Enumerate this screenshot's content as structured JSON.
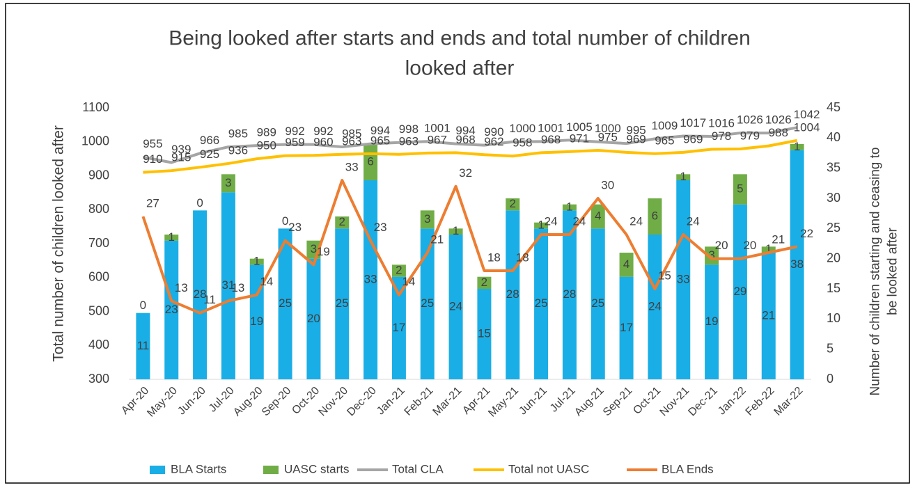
{
  "chart_data": {
    "type": "combo",
    "title": "Being looked after starts and ends and total number of children looked after",
    "y_label": "Total number of children looked after",
    "y2_label": "Number of children starting and ceasing to be looked after",
    "categories": [
      "Apr-20",
      "May-20",
      "Jun-20",
      "Jul-20",
      "Aug-20",
      "Sep-20",
      "Oct-20",
      "Nov-20",
      "Dec-20",
      "Jan-21",
      "Feb-21",
      "Mar-21",
      "Apr-21",
      "May-21",
      "Jun-21",
      "Jul-21",
      "Aug-21",
      "Sep-21",
      "Oct-21",
      "Nov-21",
      "Dec-21",
      "Jan-22",
      "Feb-22",
      "Mar-22"
    ],
    "ylim": [
      300,
      1100
    ],
    "yticks": [
      300,
      400,
      500,
      600,
      700,
      800,
      900,
      1000,
      1100
    ],
    "y2lim": [
      0,
      45
    ],
    "y2ticks": [
      0,
      5,
      10,
      15,
      20,
      25,
      30,
      35,
      40,
      45
    ],
    "series": [
      {
        "name": "BLA Starts",
        "type": "bar",
        "axis": "y2",
        "color": "#1aaee6",
        "values": [
          11,
          23,
          28,
          31,
          19,
          25,
          20,
          25,
          33,
          17,
          25,
          24,
          15,
          28,
          25,
          28,
          25,
          17,
          24,
          33,
          19,
          29,
          21,
          38
        ]
      },
      {
        "name": "UASC starts",
        "type": "bar",
        "axis": "y2",
        "color": "#70ad47",
        "values": [
          0,
          1,
          0,
          3,
          1,
          0,
          3,
          2,
          6,
          2,
          3,
          1,
          2,
          2,
          1,
          1,
          4,
          4,
          6,
          1,
          3,
          5,
          1,
          1
        ]
      },
      {
        "name": "Total CLA",
        "type": "line",
        "color": "#a5a5a5",
        "values": [
          955,
          939,
          966,
          985,
          989,
          992,
          992,
          985,
          994,
          998,
          1001,
          994,
          990,
          1000,
          1001,
          1005,
          1000,
          995,
          1009,
          1017,
          1016,
          1026,
          1026,
          1042
        ]
      },
      {
        "name": "Total not UASC",
        "type": "line",
        "color": "#ffc000",
        "values": [
          910,
          915,
          925,
          936,
          950,
          959,
          960,
          963,
          965,
          963,
          967,
          968,
          962,
          958,
          968,
          971,
          975,
          969,
          965,
          969,
          978,
          979,
          988,
          1004
        ]
      },
      {
        "name": "BLA Ends",
        "type": "line",
        "axis": "y2",
        "color": "#ed7d31",
        "values": [
          27,
          13,
          11,
          13,
          14,
          23,
          19,
          33,
          23,
          14,
          21,
          32,
          18,
          18,
          24,
          24,
          30,
          24,
          15,
          24,
          20,
          20,
          21,
          22
        ]
      }
    ]
  }
}
